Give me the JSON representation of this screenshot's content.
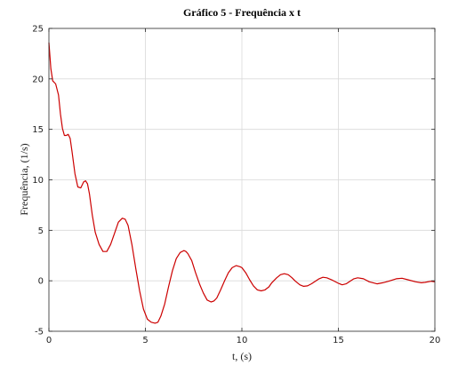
{
  "chart_data": {
    "type": "line",
    "title": "Gráfico 5 - Frequência x t",
    "xlabel": "t, (s)",
    "ylabel": "Frequência, (1/s)",
    "xlim": [
      0,
      20
    ],
    "ylim": [
      -5,
      25
    ],
    "xticks": [
      0,
      5,
      10,
      15,
      20
    ],
    "yticks": [
      -5,
      0,
      5,
      10,
      15,
      20,
      25
    ],
    "grid": true,
    "series": [
      {
        "color": "#cc0000",
        "x": [
          0,
          0.1,
          0.2,
          0.35,
          0.5,
          0.6,
          0.7,
          0.8,
          0.9,
          1.0,
          1.1,
          1.2,
          1.35,
          1.5,
          1.65,
          1.8,
          1.9,
          2.0,
          2.1,
          2.25,
          2.4,
          2.6,
          2.8,
          3.0,
          3.2,
          3.4,
          3.6,
          3.8,
          3.95,
          4.1,
          4.3,
          4.5,
          4.7,
          4.9,
          5.1,
          5.3,
          5.5,
          5.65,
          5.8,
          6.0,
          6.2,
          6.4,
          6.6,
          6.8,
          7.0,
          7.1,
          7.2,
          7.4,
          7.6,
          7.8,
          8.0,
          8.2,
          8.4,
          8.55,
          8.7,
          8.9,
          9.1,
          9.3,
          9.5,
          9.7,
          9.9,
          10.0,
          10.2,
          10.4,
          10.6,
          10.8,
          11.0,
          11.2,
          11.4,
          11.55,
          11.8,
          12.0,
          12.2,
          12.4,
          12.6,
          12.75,
          13.0,
          13.2,
          13.4,
          13.6,
          13.8,
          14.0,
          14.2,
          14.4,
          14.7,
          15.0,
          15.2,
          15.4,
          15.6,
          15.8,
          16.0,
          16.3,
          16.6,
          16.8,
          17.0,
          17.3,
          17.6,
          18.0,
          18.3,
          18.6,
          19.0,
          19.3,
          19.5,
          19.8,
          20.0
        ],
        "y": [
          23.6,
          21.0,
          19.8,
          19.5,
          18.4,
          16.5,
          15.1,
          14.4,
          14.4,
          14.5,
          14.1,
          12.8,
          10.6,
          9.3,
          9.2,
          9.8,
          9.9,
          9.6,
          8.6,
          6.5,
          4.8,
          3.6,
          2.9,
          2.9,
          3.6,
          4.7,
          5.8,
          6.2,
          6.1,
          5.5,
          3.6,
          1.2,
          -1.0,
          -2.8,
          -3.8,
          -4.1,
          -4.2,
          -4.1,
          -3.5,
          -2.3,
          -0.6,
          1.0,
          2.2,
          2.8,
          3.0,
          2.9,
          2.7,
          2.0,
          0.8,
          -0.3,
          -1.2,
          -1.9,
          -2.1,
          -2.0,
          -1.7,
          -0.9,
          0.0,
          0.8,
          1.3,
          1.5,
          1.4,
          1.3,
          0.8,
          0.1,
          -0.5,
          -0.9,
          -1.0,
          -0.9,
          -0.6,
          -0.2,
          0.3,
          0.6,
          0.7,
          0.6,
          0.3,
          0.0,
          -0.4,
          -0.55,
          -0.5,
          -0.3,
          -0.05,
          0.2,
          0.35,
          0.3,
          0.05,
          -0.25,
          -0.4,
          -0.3,
          -0.05,
          0.2,
          0.3,
          0.2,
          -0.1,
          -0.2,
          -0.3,
          -0.2,
          -0.05,
          0.2,
          0.25,
          0.1,
          -0.1,
          -0.2,
          -0.15,
          -0.05,
          -0.1
        ]
      }
    ]
  }
}
